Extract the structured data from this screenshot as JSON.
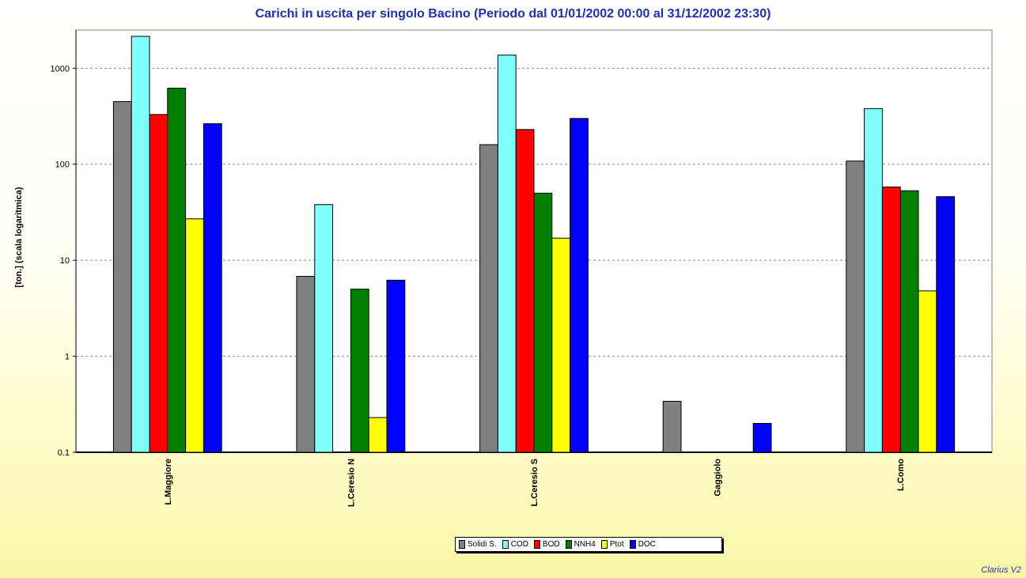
{
  "chart_data": {
    "type": "bar",
    "title": "Carichi in uscita per singolo Bacino (Periodo dal 01/01/2002 00:00 al 31/12/2002 23:30)",
    "ylabel": "[ton.] (scala logaritmica)",
    "xlabel": "",
    "yscale": "log",
    "ylim": [
      0.1,
      2500
    ],
    "yticks": [
      "0.1",
      "1",
      "10",
      "100",
      "1000"
    ],
    "grid": true,
    "legend_position": "bottom-center",
    "categories": [
      "L.Maggiore",
      "L.Ceresio N",
      "L.Ceresio S",
      "Gaggiolo",
      "L.Como"
    ],
    "series": [
      {
        "name": "Solidi S.",
        "color": "#808080",
        "values": [
          450,
          6.8,
          160,
          0.34,
          108
        ]
      },
      {
        "name": "COD",
        "color": "#80ffff",
        "values": [
          2150,
          38,
          1370,
          null,
          380
        ]
      },
      {
        "name": "BOD",
        "color": "#ff0000",
        "values": [
          330,
          null,
          230,
          null,
          58
        ]
      },
      {
        "name": "NNH4",
        "color": "#008000",
        "values": [
          620,
          5.0,
          50,
          null,
          53
        ]
      },
      {
        "name": "Ptot",
        "color": "#ffff00",
        "values": [
          27,
          0.23,
          17,
          null,
          4.8
        ]
      },
      {
        "name": "DOC",
        "color": "#0000ff",
        "values": [
          265,
          6.2,
          300,
          0.2,
          46
        ]
      }
    ]
  },
  "watermark": "Clarius V2"
}
